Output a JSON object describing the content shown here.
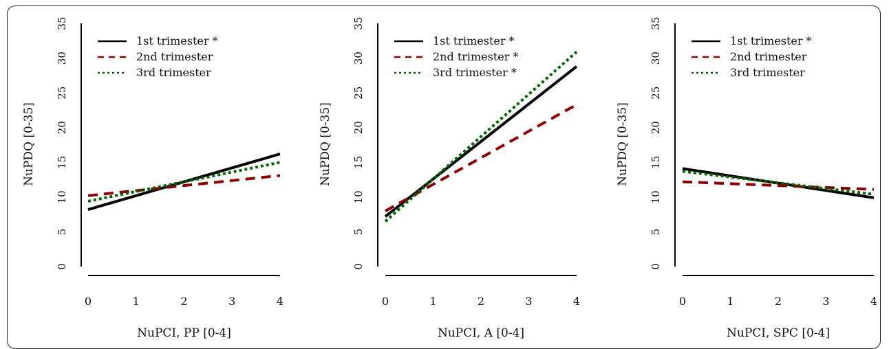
{
  "chart_data": [
    {
      "type": "line",
      "xlabel": "NuPCI, PP [0-4]",
      "ylabel": "NuPDQ [0-35]",
      "xlim": [
        0,
        4
      ],
      "ylim": [
        0,
        35
      ],
      "xticks": [
        "0",
        "1",
        "2",
        "3",
        "4"
      ],
      "yticks": [
        "0",
        "5",
        "10",
        "15",
        "20",
        "25",
        "30",
        "35"
      ],
      "legend_position": "top-left",
      "series": [
        {
          "name": "1st trimester *",
          "x": [
            0,
            4
          ],
          "values": [
            8.2,
            16.2
          ],
          "color": "#000000",
          "style": "solid"
        },
        {
          "name": "2nd trimester",
          "x": [
            0,
            4
          ],
          "values": [
            10.2,
            13.1
          ],
          "color": "#8b0000",
          "style": "dashed"
        },
        {
          "name": "3rd trimester",
          "x": [
            0,
            4
          ],
          "values": [
            9.4,
            15.0
          ],
          "color": "#006400",
          "style": "dotted"
        }
      ]
    },
    {
      "type": "line",
      "xlabel": "NuPCI, A [0-4]",
      "ylabel": "NuPDQ [0-35]",
      "xlim": [
        0,
        4
      ],
      "ylim": [
        0,
        35
      ],
      "xticks": [
        "0",
        "1",
        "2",
        "3",
        "4"
      ],
      "yticks": [
        "0",
        "5",
        "10",
        "15",
        "20",
        "25",
        "30",
        "35"
      ],
      "legend_position": "top-left",
      "series": [
        {
          "name": "1st trimester *",
          "x": [
            0,
            4
          ],
          "values": [
            7.2,
            28.8
          ],
          "color": "#000000",
          "style": "solid"
        },
        {
          "name": "2nd trimester *",
          "x": [
            0,
            4
          ],
          "values": [
            8.0,
            23.3
          ],
          "color": "#8b0000",
          "style": "dashed"
        },
        {
          "name": "3rd trimester *",
          "x": [
            0,
            4
          ],
          "values": [
            6.5,
            30.9
          ],
          "color": "#006400",
          "style": "dotted"
        }
      ]
    },
    {
      "type": "line",
      "xlabel": "NuPCI, SPC [0-4]",
      "ylabel": "NuPDQ [0-35]",
      "xlim": [
        0,
        4
      ],
      "ylim": [
        0,
        35
      ],
      "xticks": [
        "0",
        "1",
        "2",
        "3",
        "4"
      ],
      "yticks": [
        "0",
        "5",
        "10",
        "15",
        "20",
        "25",
        "30",
        "35"
      ],
      "legend_position": "top-left",
      "series": [
        {
          "name": "1st trimester *",
          "x": [
            0,
            4
          ],
          "values": [
            14.1,
            9.9
          ],
          "color": "#000000",
          "style": "solid"
        },
        {
          "name": "2nd trimester",
          "x": [
            0,
            4
          ],
          "values": [
            12.2,
            11.1
          ],
          "color": "#8b0000",
          "style": "dashed"
        },
        {
          "name": "3rd trimester",
          "x": [
            0,
            4
          ],
          "values": [
            13.7,
            10.4
          ],
          "color": "#006400",
          "style": "dotted"
        }
      ]
    }
  ]
}
